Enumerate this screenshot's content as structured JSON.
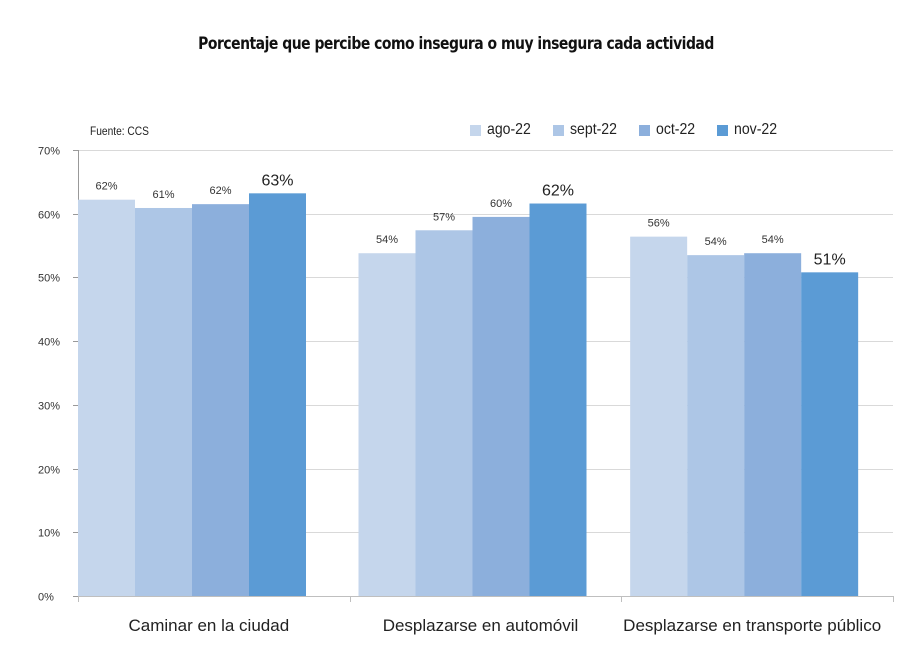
{
  "chart_data": {
    "type": "bar",
    "title": "Porcentaje que percibe como insegura o muy insegura cada actividad",
    "source_note": "Fuente: CCS",
    "xlabel": "",
    "ylabel": "",
    "ylim": [
      0,
      70
    ],
    "yticks": [
      "0%",
      "10%",
      "20%",
      "30%",
      "40%",
      "50%",
      "60%",
      "70%"
    ],
    "ytick_values": [
      0,
      10,
      20,
      30,
      40,
      50,
      60,
      70
    ],
    "grid": true,
    "legend_position": "top-right",
    "categories": [
      "Caminar en la ciudad",
      "Desplazarse en automóvil",
      "Desplazarse en transporte público"
    ],
    "series": [
      {
        "name": "ago-22",
        "color": "#c5d6ec",
        "values": [
          62.2,
          53.8,
          56.4
        ],
        "labels": [
          "62%",
          "54%",
          "56%"
        ]
      },
      {
        "name": "sept-22",
        "color": "#adc6e6",
        "values": [
          60.9,
          57.4,
          53.5
        ],
        "labels": [
          "61%",
          "57%",
          "54%"
        ]
      },
      {
        "name": "oct-22",
        "color": "#8cafdc",
        "values": [
          61.5,
          59.5,
          53.8
        ],
        "labels": [
          "62%",
          "60%",
          "54%"
        ]
      },
      {
        "name": "nov-22",
        "color": "#5b9bd5",
        "values": [
          63.2,
          61.6,
          50.8
        ],
        "labels": [
          "63%",
          "62%",
          "51%"
        ]
      }
    ],
    "emphasized_series": "nov-22"
  }
}
